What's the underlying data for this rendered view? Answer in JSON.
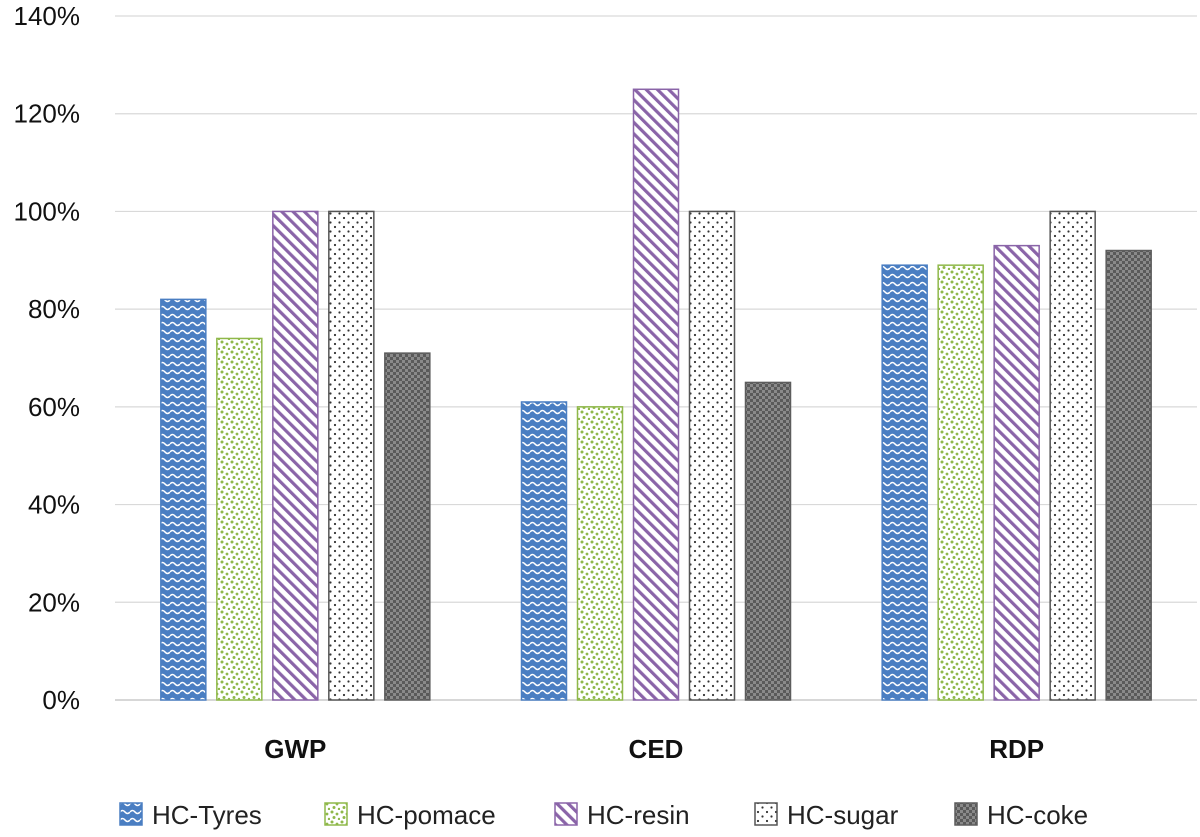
{
  "chart_data": {
    "type": "bar",
    "categories": [
      "GWP",
      "CED",
      "RDP"
    ],
    "series": [
      {
        "name": "HC-Tyres",
        "values": [
          0.82,
          0.61,
          0.89
        ],
        "color": "#4a7ec2",
        "pattern": "wave"
      },
      {
        "name": "HC-pomace",
        "values": [
          0.74,
          0.6,
          0.89
        ],
        "color": "#8fb84a",
        "pattern": "confetti"
      },
      {
        "name": "HC-resin",
        "values": [
          1.0,
          1.25,
          0.93
        ],
        "color": "#8a64a8",
        "pattern": "diagonal-stripes"
      },
      {
        "name": "HC-sugar",
        "values": [
          1.0,
          1.0,
          1.0
        ],
        "color": "#555555",
        "pattern": "dots"
      },
      {
        "name": "HC-coke",
        "values": [
          0.71,
          0.65,
          0.92
        ],
        "color": "#5c5c5c",
        "pattern": "checker"
      }
    ],
    "yticks": [
      "0%",
      "20%",
      "40%",
      "60%",
      "80%",
      "100%",
      "120%",
      "140%"
    ],
    "ylim": [
      0,
      1.4
    ],
    "grid": true,
    "legend_position": "bottom"
  }
}
